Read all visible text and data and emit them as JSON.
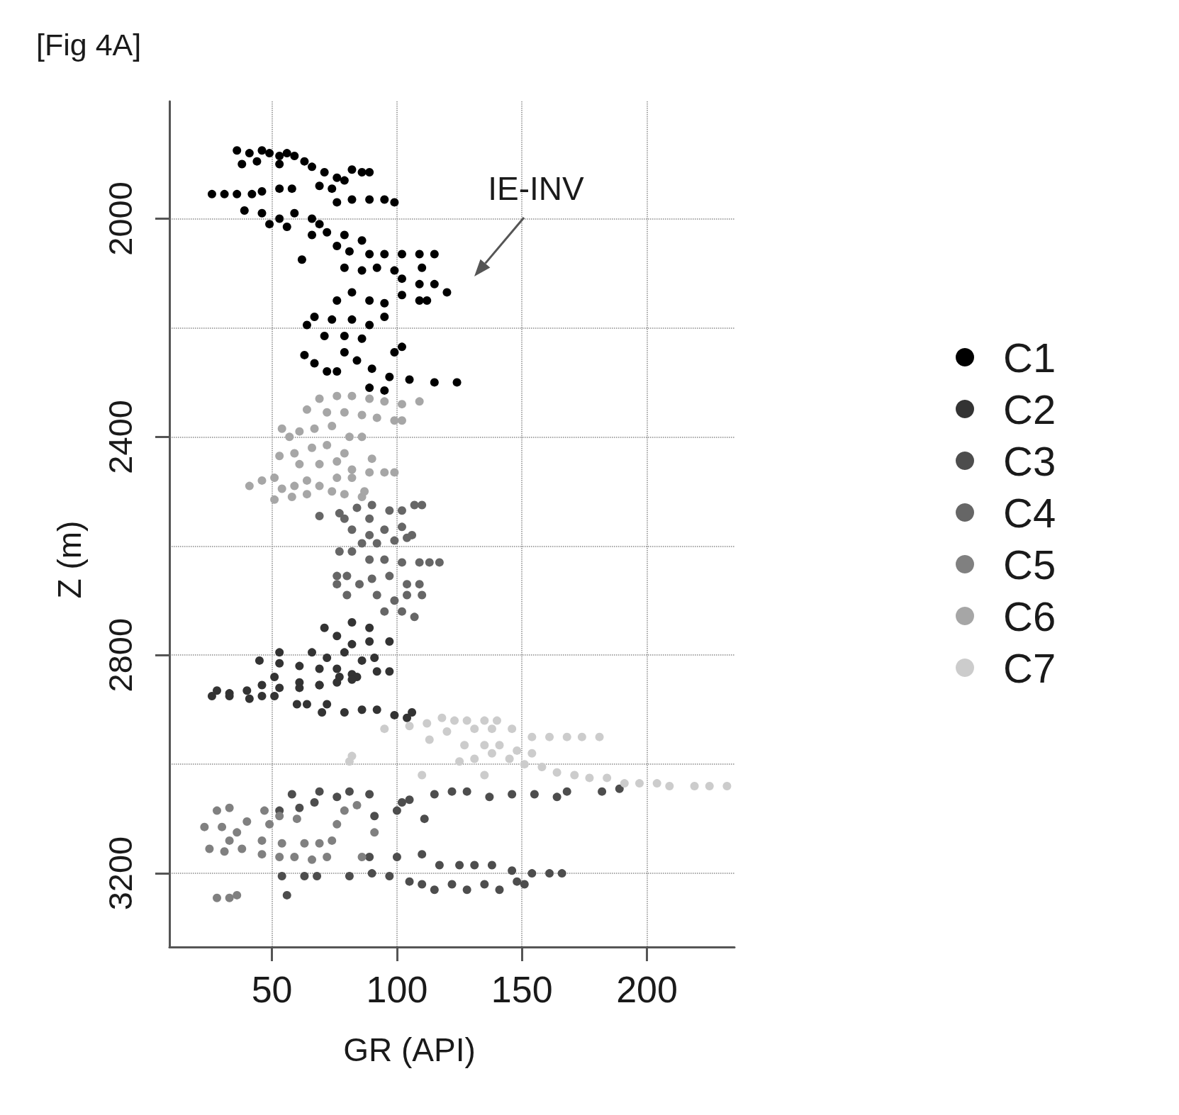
{
  "chart_data": {
    "type": "scatter",
    "title": "[Fig 4A]",
    "xlabel": "GR (API)",
    "ylabel": "Z (m)",
    "annotations": [
      "IE-INV"
    ],
    "xlim": [
      9,
      235
    ],
    "ylim": [
      3335,
      1785
    ],
    "xticks": [
      50,
      100,
      150,
      200
    ],
    "yticks": [
      2000,
      {
        "value": 2200,
        "label": null
      },
      2400,
      {
        "value": 2600,
        "label": null
      },
      2800,
      {
        "value": 3000,
        "label": null
      },
      3200
    ],
    "grid": true,
    "legend": "right",
    "marker": "circle",
    "series": [
      {
        "name": "C1",
        "color": "#000000",
        "x": [
          36,
          38,
          41,
          46,
          49,
          53,
          56,
          59,
          63,
          44,
          53,
          66,
          71,
          76,
          82,
          86,
          89,
          69,
          74,
          79,
          26,
          31,
          36,
          42,
          46,
          53,
          58,
          76,
          82,
          89,
          95,
          99,
          39,
          46,
          53,
          59,
          66,
          69,
          49,
          56,
          66,
          72,
          79,
          86,
          76,
          62,
          81,
          89,
          95,
          102,
          109,
          115,
          79,
          86,
          92,
          99,
          102,
          109,
          115,
          120,
          110,
          76,
          82,
          89,
          95,
          102,
          109,
          112,
          67,
          74,
          82,
          89,
          95,
          64,
          71,
          79,
          86,
          63,
          67,
          72,
          79,
          84,
          90,
          99,
          102,
          97,
          105,
          76,
          115,
          124,
          89,
          95
        ],
        "values": [
          1875,
          1900,
          1880,
          1875,
          1880,
          1885,
          1880,
          1885,
          1895,
          1895,
          1900,
          1905,
          1915,
          1925,
          1910,
          1915,
          1915,
          1940,
          1945,
          1930,
          1955,
          1955,
          1955,
          1955,
          1950,
          1945,
          1945,
          1970,
          1965,
          1965,
          1965,
          1970,
          1985,
          1990,
          2000,
          1990,
          2000,
          2010,
          2010,
          2015,
          2030,
          2025,
          2030,
          2040,
          2050,
          2075,
          2060,
          2065,
          2065,
          2065,
          2065,
          2065,
          2090,
          2095,
          2090,
          2095,
          2110,
          2120,
          2120,
          2135,
          2090,
          2150,
          2135,
          2150,
          2155,
          2140,
          2150,
          2150,
          2180,
          2185,
          2185,
          2195,
          2180,
          2195,
          2215,
          2215,
          2220,
          2250,
          2265,
          2280,
          2245,
          2260,
          2275,
          2245,
          2235,
          2290,
          2295,
          2280,
          2300,
          2300,
          2310,
          2315
        ]
      },
      {
        "name": "C2",
        "color": "#333333",
        "x": [
          82,
          89,
          97,
          71,
          76,
          82,
          89,
          66,
          72,
          79,
          86,
          61,
          69,
          76,
          82,
          92,
          97,
          53,
          45,
          53,
          51,
          61,
          69,
          77,
          84,
          91,
          28,
          33,
          40,
          46,
          26,
          33,
          41,
          46,
          53,
          61,
          69,
          76,
          82,
          51,
          60,
          64,
          70,
          72,
          79,
          86,
          92,
          99,
          106,
          104
        ],
        "values": [
          2740,
          2750,
          2775,
          2750,
          2765,
          2780,
          2775,
          2795,
          2805,
          2795,
          2810,
          2820,
          2825,
          2825,
          2835,
          2830,
          2830,
          2795,
          2810,
          2815,
          2840,
          2850,
          2855,
          2840,
          2840,
          2805,
          2865,
          2870,
          2865,
          2855,
          2875,
          2875,
          2880,
          2875,
          2860,
          2860,
          2855,
          2850,
          2845,
          2875,
          2890,
          2890,
          2905,
          2890,
          2905,
          2900,
          2900,
          2910,
          2905,
          2915
        ]
      },
      {
        "name": "C3",
        "color": "#4d4d4d",
        "x": [
          58,
          69,
          76,
          81,
          89,
          102,
          105,
          115,
          122,
          128,
          137,
          146,
          155,
          164,
          168,
          182,
          189,
          100,
          111,
          91,
          53,
          61,
          67,
          54,
          63,
          68,
          81,
          90,
          97,
          105,
          110,
          115,
          122,
          128,
          135,
          141,
          148,
          151,
          117,
          125,
          131,
          138,
          146,
          154,
          161,
          166,
          89,
          100,
          110,
          56
        ],
        "values": [
          3055,
          3050,
          3060,
          3050,
          3055,
          3070,
          3065,
          3055,
          3050,
          3050,
          3060,
          3055,
          3055,
          3060,
          3050,
          3050,
          3045,
          3085,
          3100,
          3095,
          3085,
          3080,
          3070,
          3205,
          3205,
          3205,
          3205,
          3200,
          3205,
          3215,
          3220,
          3230,
          3220,
          3230,
          3220,
          3230,
          3215,
          3220,
          3185,
          3185,
          3185,
          3185,
          3195,
          3200,
          3200,
          3200,
          3170,
          3170,
          3165,
          3240
        ]
      },
      {
        "name": "C4",
        "color": "#666666",
        "x": [
          69,
          77,
          84,
          90,
          97,
          102,
          107,
          110,
          79,
          89,
          82,
          89,
          95,
          102,
          106,
          86,
          92,
          99,
          104,
          77,
          82,
          89,
          95,
          102,
          109,
          113,
          117,
          76,
          80,
          85,
          90,
          97,
          104,
          109,
          76,
          80,
          92,
          99,
          104,
          110,
          95,
          102,
          107
        ],
        "values": [
          2545,
          2540,
          2530,
          2525,
          2535,
          2535,
          2525,
          2525,
          2550,
          2550,
          2570,
          2580,
          2570,
          2565,
          2580,
          2595,
          2595,
          2590,
          2585,
          2610,
          2610,
          2625,
          2625,
          2630,
          2630,
          2630,
          2630,
          2655,
          2655,
          2670,
          2660,
          2655,
          2670,
          2670,
          2670,
          2690,
          2690,
          2700,
          2690,
          2690,
          2720,
          2720,
          2730
        ]
      },
      {
        "name": "C5",
        "color": "#808080",
        "x": [
          28,
          33,
          23,
          30,
          36,
          33,
          25,
          31,
          38,
          40,
          47,
          49,
          53,
          60,
          46,
          54,
          63,
          69,
          74,
          46,
          53,
          59,
          66,
          72,
          79,
          84,
          76,
          91,
          28,
          33,
          36,
          86
        ],
        "values": [
          3085,
          3080,
          3115,
          3115,
          3125,
          3140,
          3155,
          3160,
          3155,
          3105,
          3085,
          3110,
          3095,
          3100,
          3140,
          3145,
          3145,
          3145,
          3140,
          3165,
          3170,
          3170,
          3175,
          3170,
          3085,
          3075,
          3110,
          3125,
          3245,
          3245,
          3240,
          3170
        ]
      },
      {
        "name": "C6",
        "color": "#a6a6a6",
        "x": [
          69,
          76,
          82,
          89,
          95,
          102,
          109,
          72,
          79,
          86,
          92,
          99,
          102,
          64,
          54,
          61,
          67,
          74,
          81,
          86,
          57,
          59,
          66,
          72,
          79,
          61,
          69,
          76,
          82,
          89,
          90,
          95,
          99,
          76,
          82,
          53,
          41,
          46,
          51,
          54,
          59,
          64,
          69,
          74,
          79,
          86,
          51,
          58,
          64,
          87
        ],
        "values": [
          2330,
          2325,
          2325,
          2330,
          2335,
          2340,
          2335,
          2355,
          2355,
          2360,
          2365,
          2370,
          2370,
          2350,
          2385,
          2390,
          2385,
          2380,
          2400,
          2400,
          2400,
          2430,
          2420,
          2415,
          2430,
          2450,
          2450,
          2445,
          2460,
          2465,
          2440,
          2465,
          2465,
          2475,
          2475,
          2435,
          2490,
          2480,
          2475,
          2495,
          2490,
          2480,
          2490,
          2500,
          2505,
          2510,
          2515,
          2510,
          2505,
          2500
        ]
      },
      {
        "name": "C7",
        "color": "#cccccc",
        "x": [
          105,
          112,
          118,
          123,
          128,
          135,
          140,
          131,
          138,
          146,
          154,
          161,
          168,
          174,
          181,
          120,
          127,
          135,
          141,
          148,
          154,
          125,
          131,
          138,
          145,
          151,
          158,
          164,
          171,
          177,
          184,
          191,
          197,
          204,
          209,
          219,
          225,
          232,
          95,
          113,
          81,
          135,
          110,
          82
        ],
        "values": [
          2930,
          2925,
          2915,
          2920,
          2920,
          2920,
          2920,
          2935,
          2935,
          2935,
          2950,
          2950,
          2950,
          2950,
          2950,
          2940,
          2965,
          2965,
          2965,
          2975,
          2980,
          2995,
          2990,
          2980,
          2990,
          3000,
          3005,
          3015,
          3020,
          3025,
          3025,
          3035,
          3035,
          3035,
          3040,
          3040,
          3040,
          3040,
          2935,
          2955,
          2995,
          3020,
          3020,
          2985
        ]
      }
    ]
  }
}
